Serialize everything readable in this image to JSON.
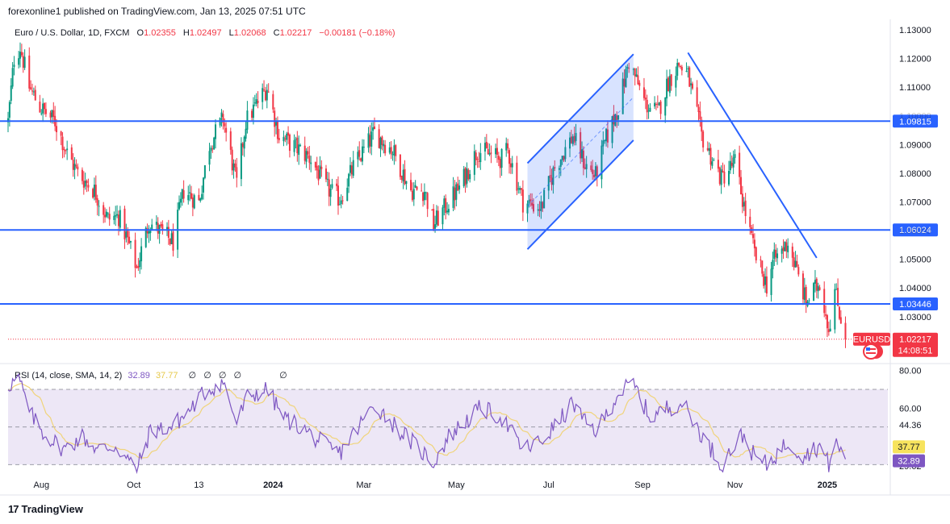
{
  "header": {
    "publisher_line": "forexonline1 published on TradingView.com, Jan 13, 2025 07:51 UTC"
  },
  "symbol": {
    "name": "Euro / U.S. Dollar, 1D, FXCM",
    "open_label": "O",
    "open": "1.02355",
    "high_label": "H",
    "high": "1.02497",
    "low_label": "L",
    "low": "1.02068",
    "close_label": "C",
    "close": "1.02217",
    "change": "−0.00181 (−0.18%)"
  },
  "rsi_legend": {
    "label": "RSI (14, close, SMA, 14, 2)",
    "rsi_value": "32.89",
    "sma_value": "37.77",
    "na_symbol": "∅"
  },
  "footer": {
    "brand": "TradingView",
    "logo_glyph": "17"
  },
  "chart_data": [
    {
      "type": "candlestick",
      "symbol": "EURUSD",
      "ylim": [
        1.0145,
        1.1325
      ],
      "y_ticks": [
        "1.13000",
        "1.12000",
        "1.11000",
        "1.10000",
        "1.09000",
        "1.08000",
        "1.07000",
        "1.06000",
        "1.05000",
        "1.04000",
        "1.03000"
      ],
      "x_ticks": [
        "Aug",
        "Oct",
        "13",
        "2024",
        "Mar",
        "May",
        "Jul",
        "Sep",
        "Nov",
        "2025"
      ],
      "x_tick_dates": [
        "2023-08-01",
        "2023-10-01",
        "2023-11-13",
        "2024-01-01",
        "2024-03-01",
        "2024-05-01",
        "2024-07-01",
        "2024-09-01",
        "2024-11-01",
        "2025-01-01"
      ],
      "x_range": [
        "2023-07-10",
        "2025-02-10"
      ],
      "up_color": "#089981",
      "down_color": "#f23645",
      "horizontal_levels": [
        {
          "value": 1.09815,
          "label": "1.09815"
        },
        {
          "value": 1.06024,
          "label": "1.06024"
        },
        {
          "value": 1.03446,
          "label": "1.03446"
        }
      ],
      "last_price": {
        "value": 1.02217,
        "label": "1.02217",
        "symbol_tag": "EURUSD",
        "countdown": "14:08:51"
      },
      "trend_channel": {
        "upper": [
          [
            "2024-06-17",
            1.0835
          ],
          [
            "2024-08-26",
            1.1215
          ]
        ],
        "lower": [
          [
            "2024-06-17",
            1.0535
          ],
          [
            "2024-08-26",
            1.0915
          ]
        ]
      },
      "trendline": [
        [
          "2024-10-01",
          1.122
        ],
        [
          "2024-12-25",
          1.0505
        ]
      ],
      "line_color": "#2962ff",
      "anchors": [
        [
          "2023-07-10",
          1.098
        ],
        [
          "2023-07-14",
          1.12
        ],
        [
          "2023-07-18",
          1.124
        ],
        [
          "2023-07-24",
          1.11
        ],
        [
          "2023-07-31",
          1.103
        ],
        [
          "2023-08-10",
          1.098
        ],
        [
          "2023-08-18",
          1.087
        ],
        [
          "2023-08-25",
          1.08
        ],
        [
          "2023-09-05",
          1.074
        ],
        [
          "2023-09-14",
          1.064
        ],
        [
          "2023-09-21",
          1.065
        ],
        [
          "2023-09-26",
          1.058
        ],
        [
          "2023-10-03",
          1.047
        ],
        [
          "2023-10-11",
          1.063
        ],
        [
          "2023-10-20",
          1.059
        ],
        [
          "2023-10-27",
          1.056
        ],
        [
          "2023-11-03",
          1.074
        ],
        [
          "2023-11-13",
          1.07
        ],
        [
          "2023-11-20",
          1.09
        ],
        [
          "2023-11-29",
          1.099
        ],
        [
          "2023-12-08",
          1.076
        ],
        [
          "2023-12-14",
          1.098
        ],
        [
          "2023-12-28",
          1.11
        ],
        [
          "2024-01-05",
          1.093
        ],
        [
          "2024-01-16",
          1.089
        ],
        [
          "2024-01-26",
          1.085
        ],
        [
          "2024-02-05",
          1.075
        ],
        [
          "2024-02-14",
          1.071
        ],
        [
          "2024-02-23",
          1.082
        ],
        [
          "2024-03-08",
          1.094
        ],
        [
          "2024-03-20",
          1.088
        ],
        [
          "2024-04-01",
          1.074
        ],
        [
          "2024-04-10",
          1.074
        ],
        [
          "2024-04-16",
          1.062
        ],
        [
          "2024-04-26",
          1.07
        ],
        [
          "2024-05-03",
          1.075
        ],
        [
          "2024-05-15",
          1.088
        ],
        [
          "2024-05-31",
          1.085
        ],
        [
          "2024-06-04",
          1.088
        ],
        [
          "2024-06-14",
          1.07
        ],
        [
          "2024-06-26",
          1.068
        ],
        [
          "2024-07-05",
          1.082
        ],
        [
          "2024-07-17",
          1.093
        ],
        [
          "2024-07-25",
          1.083
        ],
        [
          "2024-08-01",
          1.079
        ],
        [
          "2024-08-08",
          1.092
        ],
        [
          "2024-08-16",
          1.103
        ],
        [
          "2024-08-23",
          1.119
        ],
        [
          "2024-09-03",
          1.104
        ],
        [
          "2024-09-11",
          1.101
        ],
        [
          "2024-09-18",
          1.112
        ],
        [
          "2024-09-25",
          1.118
        ],
        [
          "2024-10-01",
          1.114
        ],
        [
          "2024-10-10",
          1.093
        ],
        [
          "2024-10-23",
          1.078
        ],
        [
          "2024-11-01",
          1.084
        ],
        [
          "2024-11-06",
          1.071
        ],
        [
          "2024-11-14",
          1.052
        ],
        [
          "2024-11-22",
          1.041
        ],
        [
          "2024-11-26",
          1.049
        ],
        [
          "2024-12-06",
          1.056
        ],
        [
          "2024-12-18",
          1.035
        ],
        [
          "2024-12-27",
          1.042
        ],
        [
          "2025-01-02",
          1.026
        ],
        [
          "2025-01-06",
          1.039
        ],
        [
          "2025-01-13",
          1.022
        ]
      ]
    },
    {
      "type": "line",
      "title": "RSI (14, close, SMA, 14, 2)",
      "ylim": [
        25,
        82
      ],
      "y_ticks": [
        "80.00",
        "60.00"
      ],
      "band_labels": [
        "44.36",
        "29.62"
      ],
      "band": [
        30,
        70
      ],
      "middle": 50,
      "last_values": {
        "rsi": "32.89",
        "sma": "37.77"
      },
      "rsi_color": "#7e57c2",
      "sma_color": "#f0d47a",
      "band_fill": "#ede7f6",
      "anchors": [
        [
          "2023-07-10",
          72
        ],
        [
          "2023-07-17",
          76
        ],
        [
          "2023-07-24",
          58
        ],
        [
          "2023-08-02",
          47
        ],
        [
          "2023-08-16",
          38
        ],
        [
          "2023-08-28",
          45
        ],
        [
          "2023-09-07",
          38
        ],
        [
          "2023-09-19",
          40
        ],
        [
          "2023-10-03",
          27
        ],
        [
          "2023-10-12",
          48
        ],
        [
          "2023-10-26",
          50
        ],
        [
          "2023-11-06",
          58
        ],
        [
          "2023-11-16",
          68
        ],
        [
          "2023-11-29",
          74
        ],
        [
          "2023-12-08",
          52
        ],
        [
          "2023-12-15",
          66
        ],
        [
          "2023-12-28",
          70
        ],
        [
          "2024-01-08",
          55
        ],
        [
          "2024-01-19",
          50
        ],
        [
          "2024-02-05",
          40
        ],
        [
          "2024-02-14",
          36
        ],
        [
          "2024-03-08",
          62
        ],
        [
          "2024-03-25",
          48
        ],
        [
          "2024-04-16",
          31
        ],
        [
          "2024-04-26",
          45
        ],
        [
          "2024-05-17",
          60
        ],
        [
          "2024-05-31",
          55
        ],
        [
          "2024-06-14",
          38
        ],
        [
          "2024-06-26",
          42
        ],
        [
          "2024-07-10",
          55
        ],
        [
          "2024-07-17",
          63
        ],
        [
          "2024-07-25",
          52
        ],
        [
          "2024-08-02",
          48
        ],
        [
          "2024-08-16",
          68
        ],
        [
          "2024-08-26",
          73
        ],
        [
          "2024-09-06",
          55
        ],
        [
          "2024-09-17",
          60
        ],
        [
          "2024-09-27",
          63
        ],
        [
          "2024-10-10",
          46
        ],
        [
          "2024-10-23",
          30
        ],
        [
          "2024-11-06",
          46
        ],
        [
          "2024-11-14",
          34
        ],
        [
          "2024-11-22",
          30
        ],
        [
          "2024-12-06",
          42
        ],
        [
          "2024-12-16",
          35
        ],
        [
          "2024-12-27",
          40
        ],
        [
          "2025-01-02",
          30
        ],
        [
          "2025-01-06",
          42
        ],
        [
          "2025-01-13",
          33
        ]
      ]
    }
  ]
}
